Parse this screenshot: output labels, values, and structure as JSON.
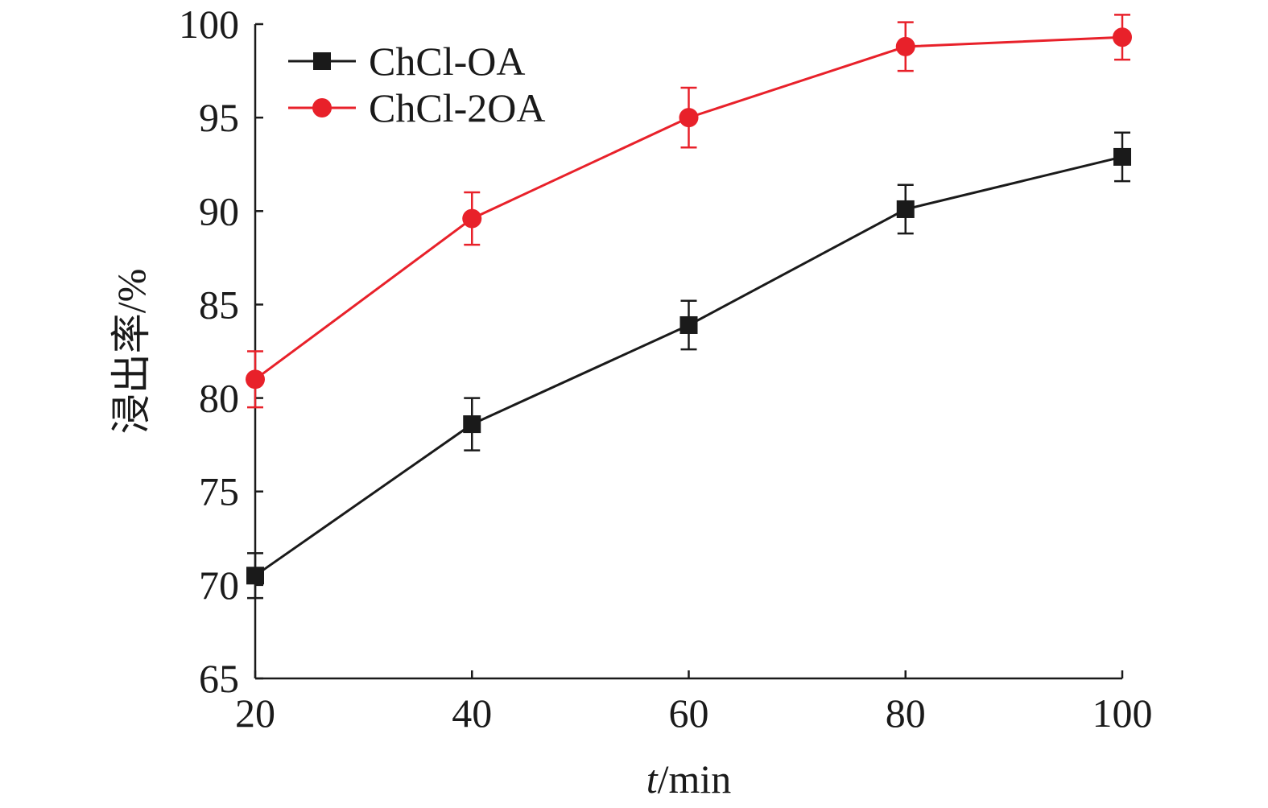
{
  "chart_data": {
    "type": "line",
    "xlabel_italic": "t",
    "xlabel_rest": "/min",
    "ylabel": "浸出率/%",
    "xlim": [
      20,
      100
    ],
    "ylim": [
      65,
      100
    ],
    "x_ticks": [
      20,
      40,
      60,
      80,
      100
    ],
    "y_ticks": [
      65,
      70,
      75,
      80,
      85,
      90,
      95,
      100
    ],
    "x": [
      20,
      40,
      60,
      80,
      100
    ],
    "legend_position": "top-left",
    "grid": false,
    "series": [
      {
        "name": "ChCl-OA",
        "color": "#1a1a1a",
        "marker": "square",
        "values": [
          70.5,
          78.6,
          83.9,
          90.1,
          92.9
        ],
        "errors": [
          1.2,
          1.4,
          1.3,
          1.3,
          1.3
        ]
      },
      {
        "name": "ChCl-2OA",
        "color": "#e8212a",
        "marker": "circle",
        "values": [
          81.0,
          89.6,
          95.0,
          98.8,
          99.3
        ],
        "errors": [
          1.5,
          1.4,
          1.6,
          1.3,
          1.2
        ]
      }
    ]
  }
}
